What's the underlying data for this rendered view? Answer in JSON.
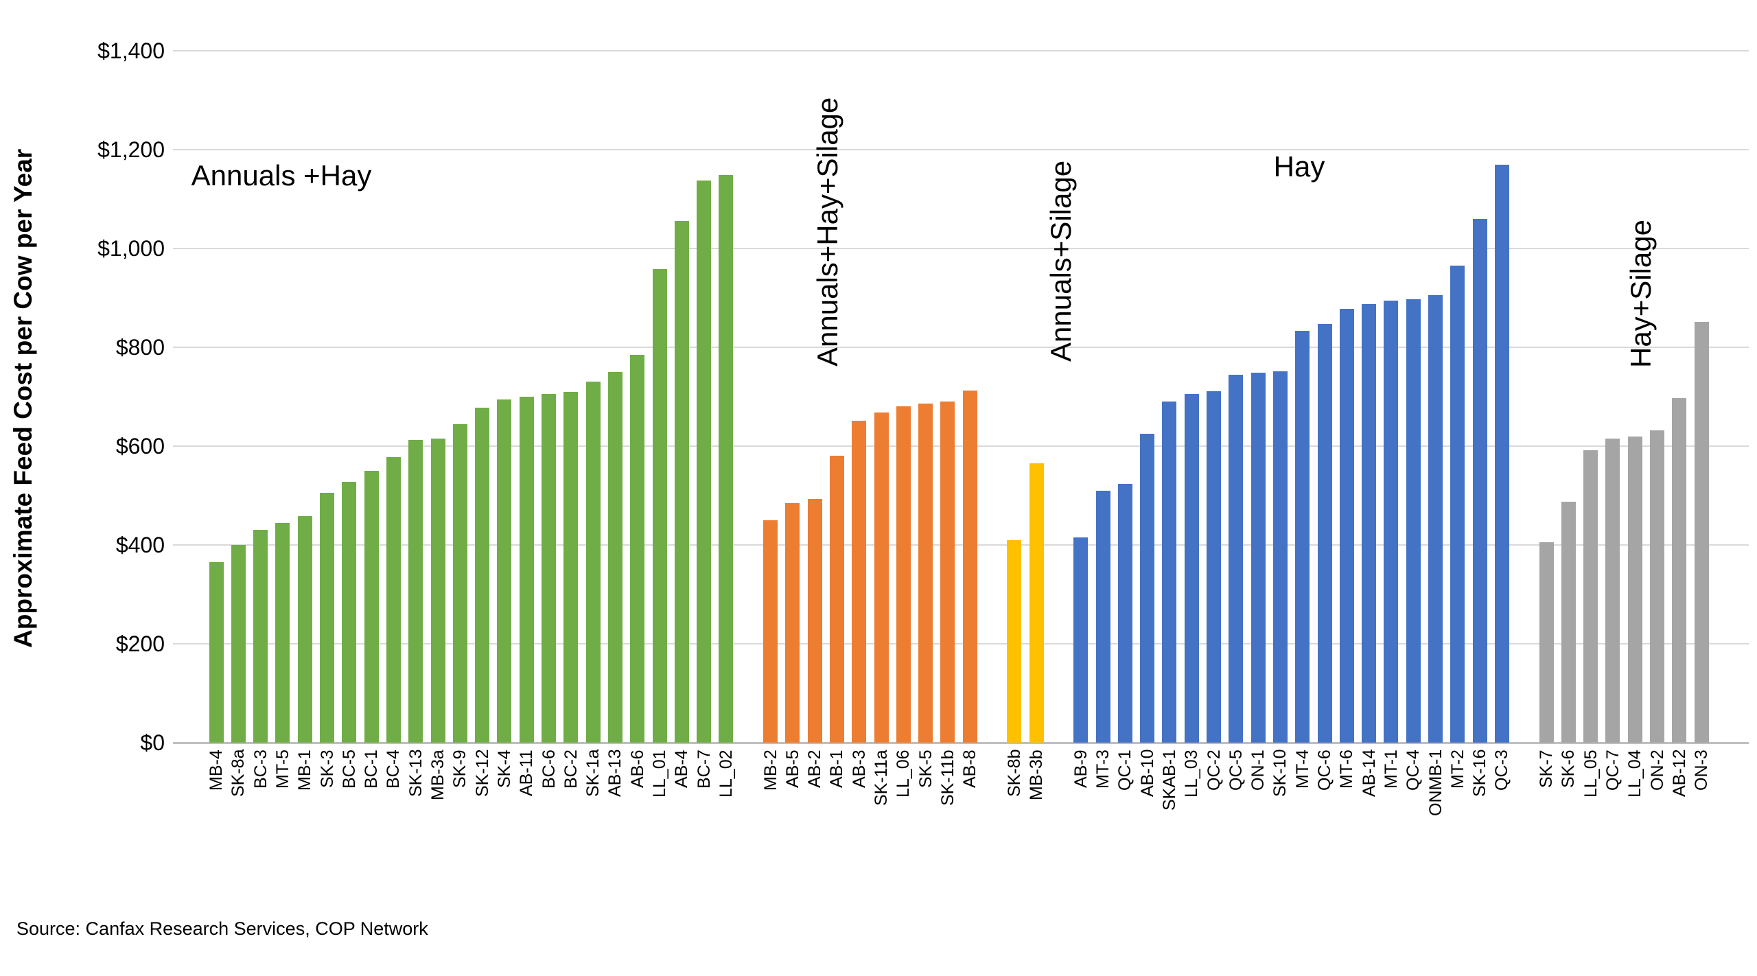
{
  "chart_data": {
    "type": "bar",
    "title": "",
    "ylabel": "Approximate Feed Cost per Cow per Year",
    "xlabel": "",
    "ylim": [
      0,
      1400
    ],
    "ytick_step": 200,
    "yticks": [
      "$0",
      "$200",
      "$400",
      "$600",
      "$800",
      "$1,000",
      "$1,200",
      "$1,400"
    ],
    "grid": true,
    "legend": "none",
    "source": "Source: Canfax Research Services, COP Network",
    "groups": [
      {
        "name": "Annuals +Hay",
        "color": "#70AD47",
        "group_label_orientation": "horizontal",
        "categories": [
          "MB-4",
          "SK-8a",
          "BC-3",
          "MT-5",
          "MB-1",
          "SK-3",
          "BC-5",
          "BC-1",
          "BC-4",
          "SK-13",
          "MB-3a",
          "SK-9",
          "SK-12",
          "SK-4",
          "AB-11",
          "BC-6",
          "BC-2",
          "SK-1a",
          "AB-13",
          "AB-6",
          "LL_01",
          "AB-4",
          "BC-7",
          "LL_02"
        ],
        "values": [
          365,
          400,
          430,
          445,
          458,
          505,
          528,
          550,
          578,
          612,
          615,
          645,
          678,
          695,
          700,
          706,
          710,
          730,
          750,
          785,
          958,
          1055,
          1138,
          1148
        ]
      },
      {
        "name": "Annuals+Hay+Silage",
        "color": "#ED7D31",
        "group_label_orientation": "vertical",
        "categories": [
          "MB-2",
          "AB-5",
          "AB-2",
          "AB-1",
          "AB-3",
          "SK-11a",
          "LL_06",
          "SK-5",
          "SK-11b",
          "AB-8"
        ],
        "values": [
          450,
          485,
          493,
          580,
          652,
          668,
          680,
          686,
          690,
          712
        ]
      },
      {
        "name": "Annuals+Silage",
        "color": "#FFC000",
        "group_label_orientation": "vertical",
        "categories": [
          "SK-8b",
          "MB-3b"
        ],
        "values": [
          410,
          565
        ]
      },
      {
        "name": "Hay",
        "color": "#4472C4",
        "group_label_orientation": "horizontal",
        "categories": [
          "AB-9",
          "MT-3",
          "QC-1",
          "AB-10",
          "SKAB-1",
          "LL_03",
          "QC-2",
          "QC-5",
          "ON-1",
          "SK-10",
          "MT-4",
          "QC-6",
          "MT-6",
          "AB-14",
          "MT-1",
          "QC-4",
          "ONMB-1",
          "MT-2",
          "SK-16",
          "QC-3"
        ],
        "values": [
          415,
          510,
          523,
          625,
          690,
          705,
          711,
          745,
          748,
          751,
          833,
          847,
          878,
          888,
          895,
          897,
          905,
          965,
          1060,
          1170
        ]
      },
      {
        "name": "Hay+Silage",
        "color": "#A5A5A5",
        "group_label_orientation": "vertical",
        "categories": [
          "SK-7",
          "SK-6",
          "LL_05",
          "QC-7",
          "LL_04",
          "ON-2",
          "AB-12",
          "ON-3"
        ],
        "values": [
          405,
          488,
          592,
          615,
          620,
          632,
          697,
          852
        ]
      }
    ]
  }
}
